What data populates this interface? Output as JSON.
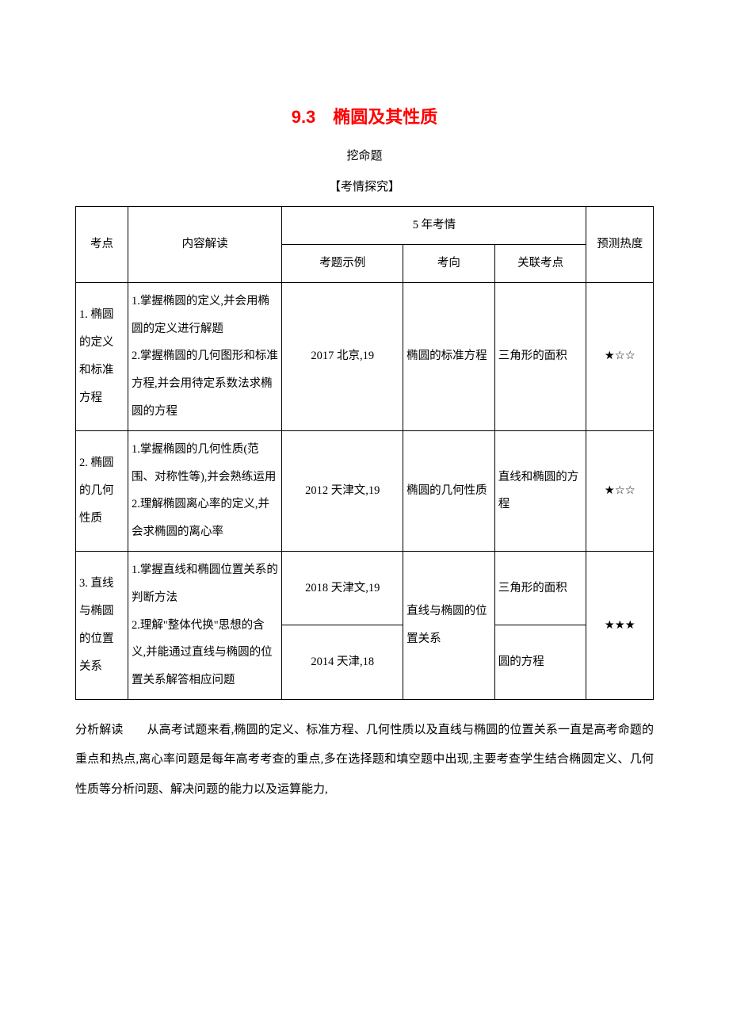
{
  "title": "9.3　椭圆及其性质",
  "subtitle": "挖命题",
  "sectionHeader": "【考情探究】",
  "table": {
    "headers": {
      "kaodian": "考点",
      "neirong": "内容解读",
      "kaoqing": "5 年考情",
      "kaoti": "考题示例",
      "kaoxiang": "考向",
      "guanlian": "关联考点",
      "yuce": "预测热度"
    },
    "rows": [
      {
        "kaodian": "1. 椭圆的定义和标准方程",
        "neirong": "1.掌握椭圆的定义,并会用椭圆的定义进行解题\n2.掌握椭圆的几何图形和标准方程,并会用待定系数法求椭圆的方程",
        "kaoti": "2017 北京,19",
        "kaoxiang": "椭圆的标准方程",
        "guanlian": "三角形的面积",
        "yuce": "★☆☆"
      },
      {
        "kaodian": "2. 椭圆的几何性质",
        "neirong": "1.掌握椭圆的几何性质(范围、对称性等),并会熟练运用\n2.理解椭圆离心率的定义,并会求椭圆的离心率",
        "kaoti": "2012 天津文,19",
        "kaoxiang": "椭圆的几何性质",
        "guanlian": "直线和椭圆的方程",
        "yuce": "★☆☆"
      },
      {
        "kaodian": "3. 直线与椭圆的位置关系",
        "neirong": "1.掌握直线和椭圆位置关系的判断方法\n2.理解\"整体代换\"思想的含义,并能通过直线与椭圆的位置关系解答相应问题",
        "kaoti1": "2018 天津文,19",
        "kaoti2": "2014 天津,18",
        "kaoxiang": "直线与椭圆的位置关系",
        "guanlian1": "三角形的面积",
        "guanlian2": "圆的方程",
        "yuce": "★★★"
      }
    ]
  },
  "analysis": {
    "label": "分析解读",
    "body": "从高考试题来看,椭圆的定义、标准方程、几何性质以及直线与椭圆的位置关系一直是高考命题的重点和热点,离心率问题是每年高考考查的重点,多在选择题和填空题中出现,主要考查学生结合椭圆定义、几何性质等分析问题、解决问题的能力以及运算能力,"
  },
  "colors": {
    "titleColor": "#ff0000",
    "textColor": "#000000",
    "borderColor": "#000000",
    "background": "#ffffff"
  }
}
